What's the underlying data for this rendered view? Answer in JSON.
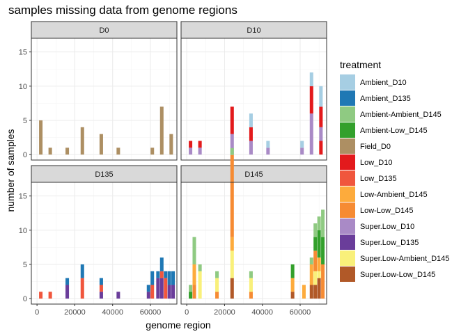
{
  "chart_data": {
    "type": "bar",
    "stacked": true,
    "title": "samples missing data from genome regions",
    "xlabel": "genome region",
    "ylabel": "number of samples",
    "xlim": [
      -3000,
      74000
    ],
    "ylim": [
      -0.8,
      17
    ],
    "x_ticks": [
      0,
      20000,
      40000,
      60000
    ],
    "x_tick_labels": [
      "0",
      "20000",
      "40000",
      "60000"
    ],
    "y_ticks": [
      0,
      5,
      10,
      15
    ],
    "y_tick_labels": [
      "0",
      "5",
      "10",
      "15"
    ],
    "bin_width": 1850,
    "grid": true,
    "legend": {
      "title": "treatment",
      "position": "right",
      "entries": [
        {
          "label": "Ambient_D10",
          "color": "#a6cee3"
        },
        {
          "label": "Ambient_D135",
          "color": "#1f78b4"
        },
        {
          "label": "Ambient-Ambient_D145",
          "color": "#8fca82"
        },
        {
          "label": "Ambient-Low_D145",
          "color": "#33a02c"
        },
        {
          "label": "Field_D0",
          "color": "#ad8f63"
        },
        {
          "label": "Low_D10",
          "color": "#e31a1c"
        },
        {
          "label": "Low_D135",
          "color": "#f0563d"
        },
        {
          "label": "Low-Ambient_D145",
          "color": "#fdab3c"
        },
        {
          "label": "Low-Low_D145",
          "color": "#f68b33"
        },
        {
          "label": "Super.Low_D10",
          "color": "#a98ac6"
        },
        {
          "label": "Super.Low_D135",
          "color": "#6a3d9a"
        },
        {
          "label": "Super.Low-Ambient_D145",
          "color": "#f9f07a"
        },
        {
          "label": "Super.Low-Low_D145",
          "color": "#b15928"
        }
      ]
    },
    "panels": [
      {
        "label": "D0",
        "bars": [
          {
            "x": 2000,
            "segments": [
              {
                "treatment": "Field_D0",
                "value": 5
              }
            ]
          },
          {
            "x": 7000,
            "segments": [
              {
                "treatment": "Field_D0",
                "value": 1
              }
            ]
          },
          {
            "x": 16000,
            "segments": [
              {
                "treatment": "Field_D0",
                "value": 1
              }
            ]
          },
          {
            "x": 24000,
            "segments": [
              {
                "treatment": "Field_D0",
                "value": 4
              }
            ]
          },
          {
            "x": 34000,
            "segments": [
              {
                "treatment": "Field_D0",
                "value": 3
              }
            ]
          },
          {
            "x": 43000,
            "segments": [
              {
                "treatment": "Field_D0",
                "value": 1
              }
            ]
          },
          {
            "x": 61000,
            "segments": [
              {
                "treatment": "Field_D0",
                "value": 1
              }
            ]
          },
          {
            "x": 66000,
            "segments": [
              {
                "treatment": "Field_D0",
                "value": 7
              }
            ]
          },
          {
            "x": 71000,
            "segments": [
              {
                "treatment": "Field_D0",
                "value": 3
              }
            ]
          }
        ]
      },
      {
        "label": "D10",
        "bars": [
          {
            "x": 2000,
            "segments": [
              {
                "treatment": "Super.Low_D10",
                "value": 1
              },
              {
                "treatment": "Low_D10",
                "value": 1
              }
            ]
          },
          {
            "x": 7000,
            "segments": [
              {
                "treatment": "Super.Low_D10",
                "value": 1
              },
              {
                "treatment": "Low_D10",
                "value": 1
              }
            ]
          },
          {
            "x": 24000,
            "segments": [
              {
                "treatment": "Super.Low_D10",
                "value": 3
              },
              {
                "treatment": "Low_D10",
                "value": 4
              }
            ]
          },
          {
            "x": 34000,
            "segments": [
              {
                "treatment": "Super.Low_D10",
                "value": 2
              },
              {
                "treatment": "Low_D10",
                "value": 2
              },
              {
                "treatment": "Ambient_D10",
                "value": 2
              }
            ]
          },
          {
            "x": 43000,
            "segments": [
              {
                "treatment": "Super.Low_D10",
                "value": 1
              },
              {
                "treatment": "Ambient_D10",
                "value": 1
              }
            ]
          },
          {
            "x": 61000,
            "segments": [
              {
                "treatment": "Super.Low_D10",
                "value": 1
              },
              {
                "treatment": "Ambient_D10",
                "value": 1
              }
            ]
          },
          {
            "x": 66000,
            "segments": [
              {
                "treatment": "Super.Low_D10",
                "value": 6
              },
              {
                "treatment": "Low_D10",
                "value": 4
              },
              {
                "treatment": "Ambient_D10",
                "value": 2
              }
            ]
          },
          {
            "x": 71000,
            "segments": [
              {
                "treatment": "Low_D10",
                "value": 2
              },
              {
                "treatment": "Super.Low_D10",
                "value": 2
              },
              {
                "treatment": "Low_D10",
                "value": 3
              },
              {
                "treatment": "Ambient_D10",
                "value": 3
              }
            ]
          }
        ]
      },
      {
        "label": "D135",
        "bars": [
          {
            "x": 2000,
            "segments": [
              {
                "treatment": "Low_D135",
                "value": 1
              }
            ]
          },
          {
            "x": 7000,
            "segments": [
              {
                "treatment": "Low_D135",
                "value": 1
              }
            ]
          },
          {
            "x": 16000,
            "segments": [
              {
                "treatment": "Super.Low_D135",
                "value": 2
              },
              {
                "treatment": "Ambient_D135",
                "value": 1
              }
            ]
          },
          {
            "x": 24000,
            "segments": [
              {
                "treatment": "Low_D135",
                "value": 3
              },
              {
                "treatment": "Ambient_D135",
                "value": 2
              }
            ]
          },
          {
            "x": 34000,
            "segments": [
              {
                "treatment": "Super.Low_D135",
                "value": 1
              },
              {
                "treatment": "Low_D135",
                "value": 1
              },
              {
                "treatment": "Ambient_D135",
                "value": 1
              }
            ]
          },
          {
            "x": 43000,
            "segments": [
              {
                "treatment": "Super.Low_D135",
                "value": 1
              }
            ]
          },
          {
            "x": 59000,
            "segments": [
              {
                "treatment": "Super.Low_D135",
                "value": 1
              },
              {
                "treatment": "Ambient_D135",
                "value": 1
              }
            ]
          },
          {
            "x": 61000,
            "segments": [
              {
                "treatment": "Low_D135",
                "value": 2
              },
              {
                "treatment": "Ambient_D135",
                "value": 2
              }
            ]
          },
          {
            "x": 64000,
            "segments": [
              {
                "treatment": "Super.Low_D135",
                "value": 3
              },
              {
                "treatment": "Ambient_D135",
                "value": 1
              }
            ]
          },
          {
            "x": 66000,
            "segments": [
              {
                "treatment": "Super.Low_D135",
                "value": 3
              },
              {
                "treatment": "Low_D135",
                "value": 1
              },
              {
                "treatment": "Ambient_D135",
                "value": 2
              }
            ]
          },
          {
            "x": 68000,
            "segments": [
              {
                "treatment": "Low_D135",
                "value": 3
              },
              {
                "treatment": "Ambient_D135",
                "value": 1
              }
            ]
          },
          {
            "x": 70000,
            "segments": [
              {
                "treatment": "Super.Low_D135",
                "value": 2
              },
              {
                "treatment": "Ambient_D135",
                "value": 2
              }
            ]
          },
          {
            "x": 72000,
            "segments": [
              {
                "treatment": "Super.Low_D135",
                "value": 2
              },
              {
                "treatment": "Ambient_D135",
                "value": 2
              }
            ]
          }
        ]
      },
      {
        "label": "D145",
        "bars": [
          {
            "x": 2000,
            "segments": [
              {
                "treatment": "Ambient-Low_D145",
                "value": 1
              },
              {
                "treatment": "Ambient-Ambient_D145",
                "value": 1
              }
            ]
          },
          {
            "x": 4000,
            "segments": [
              {
                "treatment": "Low-Low_D145",
                "value": 2
              },
              {
                "treatment": "Low-Ambient_D145",
                "value": 3
              },
              {
                "treatment": "Ambient-Ambient_D145",
                "value": 4
              }
            ]
          },
          {
            "x": 7000,
            "segments": [
              {
                "treatment": "Super.Low-Ambient_D145",
                "value": 4
              },
              {
                "treatment": "Ambient-Ambient_D145",
                "value": 1
              }
            ]
          },
          {
            "x": 16000,
            "segments": [
              {
                "treatment": "Low-Low_D145",
                "value": 1
              },
              {
                "treatment": "Super.Low-Ambient_D145",
                "value": 2
              },
              {
                "treatment": "Ambient-Ambient_D145",
                "value": 1
              }
            ]
          },
          {
            "x": 24000,
            "segments": [
              {
                "treatment": "Super.Low-Low_D145",
                "value": 3
              },
              {
                "treatment": "Super.Low-Ambient_D145",
                "value": 4
              },
              {
                "treatment": "Low-Ambient_D145",
                "value": 2
              },
              {
                "treatment": "Low-Low_D145",
                "value": 12
              },
              {
                "treatment": "Ambient-Ambient_D145",
                "value": 1
              }
            ]
          },
          {
            "x": 34000,
            "segments": [
              {
                "treatment": "Low-Low_D145",
                "value": 1
              },
              {
                "treatment": "Super.Low-Ambient_D145",
                "value": 2
              },
              {
                "treatment": "Ambient-Ambient_D145",
                "value": 1
              }
            ]
          },
          {
            "x": 56000,
            "segments": [
              {
                "treatment": "Super.Low-Low_D145",
                "value": 1
              },
              {
                "treatment": "Low-Ambient_D145",
                "value": 2
              },
              {
                "treatment": "Ambient-Low_D145",
                "value": 2
              }
            ]
          },
          {
            "x": 62000,
            "segments": [
              {
                "treatment": "Low-Ambient_D145",
                "value": 2
              }
            ]
          },
          {
            "x": 66000,
            "segments": [
              {
                "treatment": "Super.Low-Low_D145",
                "value": 2
              },
              {
                "treatment": "Low-Ambient_D145",
                "value": 3
              },
              {
                "treatment": "Ambient-Ambient_D145",
                "value": 1
              }
            ]
          },
          {
            "x": 68000,
            "segments": [
              {
                "treatment": "Super.Low-Low_D145",
                "value": 2
              },
              {
                "treatment": "Super.Low-Ambient_D145",
                "value": 2
              },
              {
                "treatment": "Low-Low_D145",
                "value": 3
              },
              {
                "treatment": "Ambient-Low_D145",
                "value": 2
              },
              {
                "treatment": "Ambient-Ambient_D145",
                "value": 2
              }
            ]
          },
          {
            "x": 70000,
            "segments": [
              {
                "treatment": "Super.Low-Low_D145",
                "value": 3
              },
              {
                "treatment": "Super.Low-Ambient_D145",
                "value": 1
              },
              {
                "treatment": "Low-Ambient_D145",
                "value": 2
              },
              {
                "treatment": "Ambient-Low_D145",
                "value": 4
              },
              {
                "treatment": "Ambient-Ambient_D145",
                "value": 2
              }
            ]
          },
          {
            "x": 72000,
            "segments": [
              {
                "treatment": "Low-Low_D145",
                "value": 5
              },
              {
                "treatment": "Ambient-Low_D145",
                "value": 4
              },
              {
                "treatment": "Ambient-Ambient_D145",
                "value": 4
              }
            ]
          }
        ]
      }
    ]
  }
}
